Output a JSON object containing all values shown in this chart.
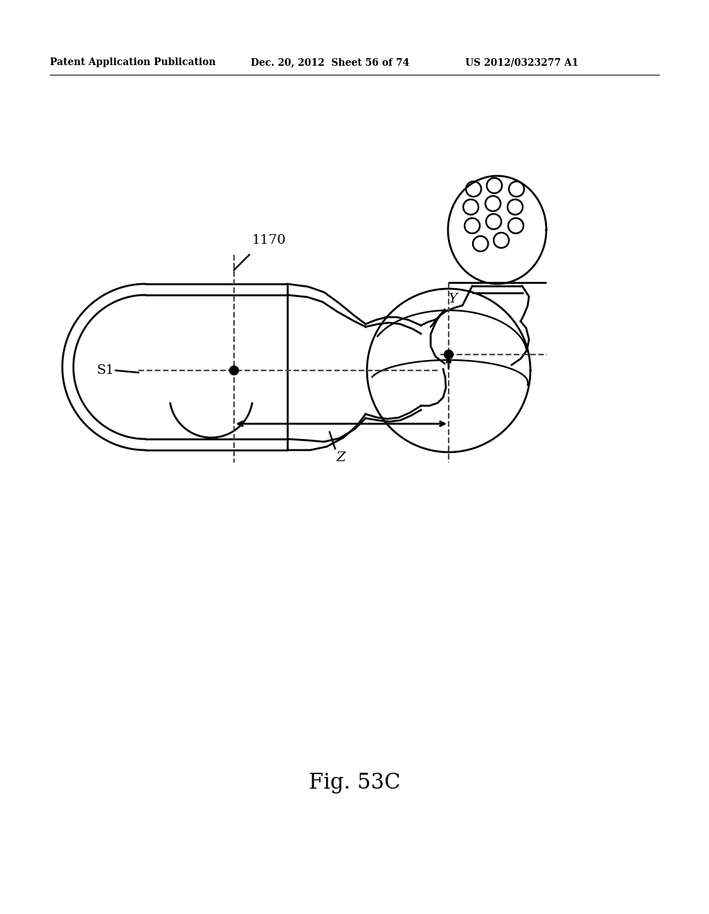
{
  "bg_color": "#ffffff",
  "header_left": "Patent Application Publication",
  "header_mid": "Dec. 20, 2012  Sheet 56 of 74",
  "header_right": "US 2012/0323277 A1",
  "fig_label": "Fig. 53C",
  "label_1170": "1170",
  "label_S1": "S1",
  "label_Y": "Y",
  "label_Z": "Z",
  "line_color": "#000000",
  "line_width": 2.0,
  "dashed_lw": 1.6,
  "header_fontsize": 10,
  "label_fontsize": 14,
  "fig_label_fontsize": 22
}
